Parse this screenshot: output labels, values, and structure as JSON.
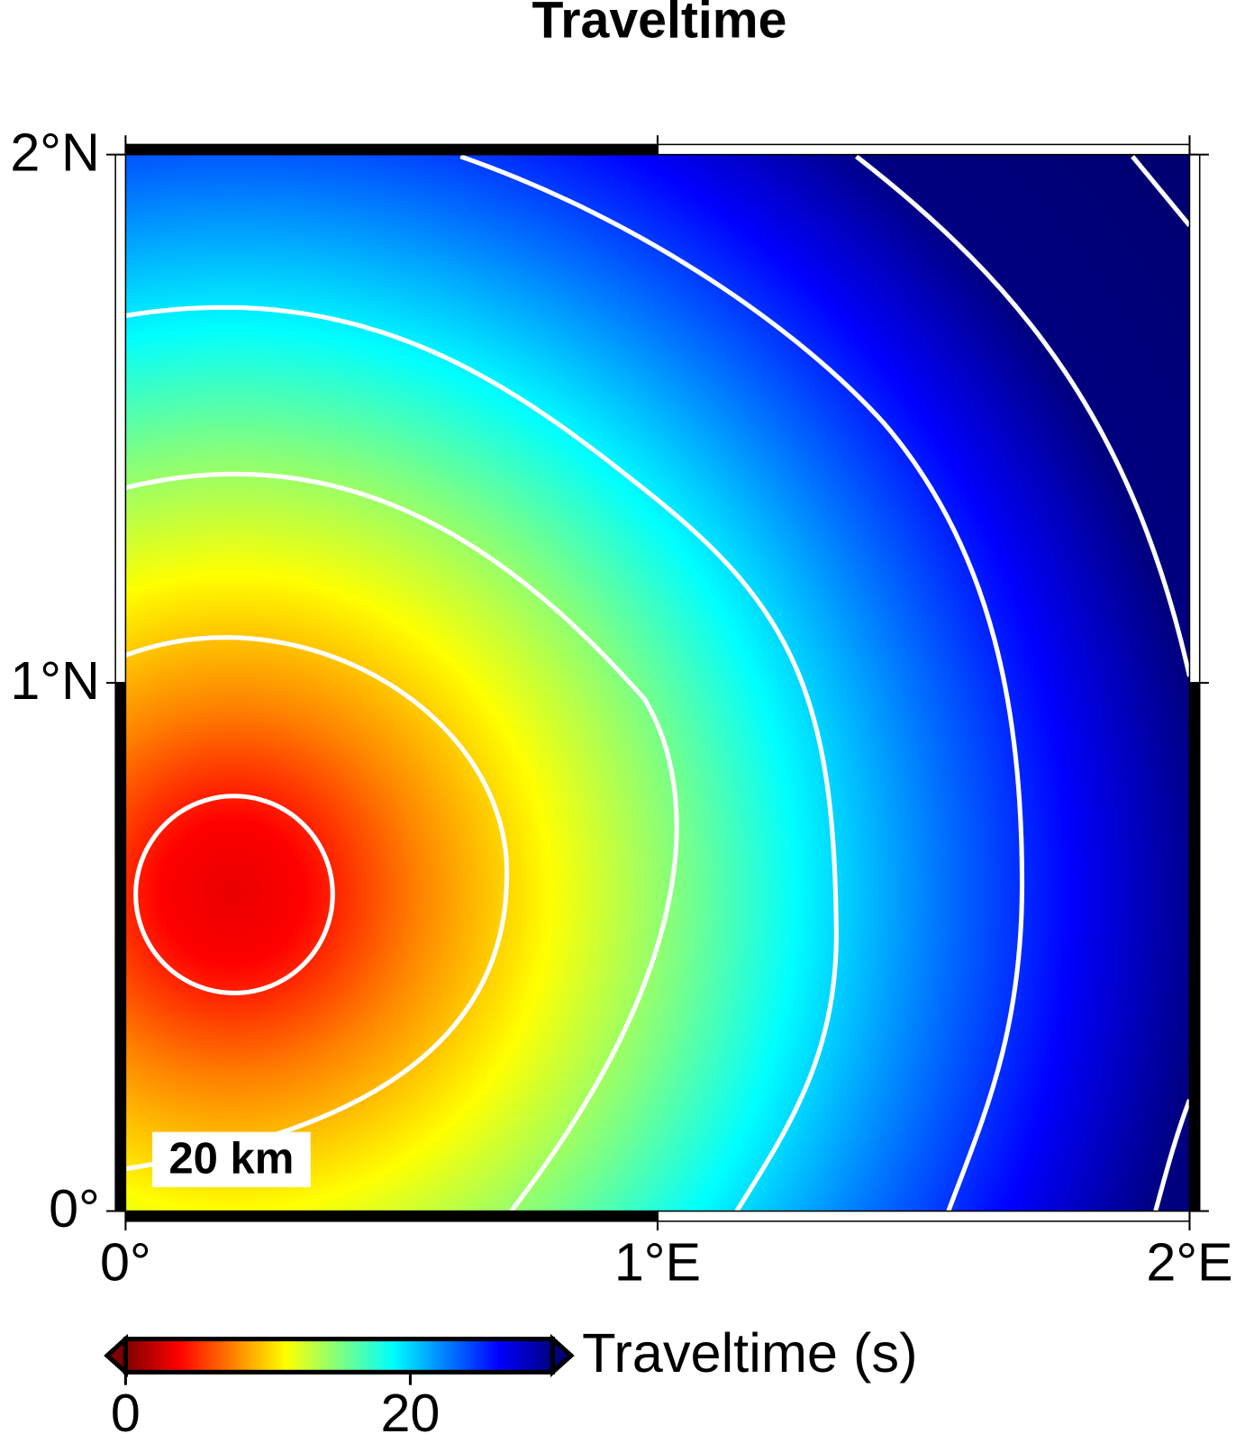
{
  "chart_data": {
    "type": "heatmap",
    "title": "Traveltime",
    "xlim": [
      0,
      2
    ],
    "ylim": [
      0,
      2
    ],
    "xticks": [
      {
        "value": 0,
        "label": "0°"
      },
      {
        "value": 1,
        "label": "1°E"
      },
      {
        "value": 2,
        "label": "2°E"
      }
    ],
    "yticks": [
      {
        "value": 0,
        "label": "0°"
      },
      {
        "value": 1,
        "label": "1°N"
      },
      {
        "value": 2,
        "label": "2°N"
      }
    ],
    "annotation": "20 km",
    "colorbar": {
      "label": "Traveltime (s)",
      "lim": [
        0,
        30
      ],
      "ticks": [
        0,
        20
      ]
    }
  }
}
